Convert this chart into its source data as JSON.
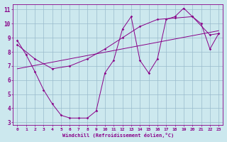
{
  "xlabel": "Windchill (Refroidissement éolien,°C)",
  "bg_color": "#cce8ee",
  "line_color": "#880088",
  "grid_color": "#99bbcc",
  "xlim": [
    -0.5,
    23.5
  ],
  "ylim": [
    2.8,
    11.4
  ],
  "xticks": [
    0,
    1,
    2,
    3,
    4,
    5,
    6,
    7,
    8,
    9,
    10,
    11,
    12,
    13,
    14,
    15,
    16,
    17,
    18,
    19,
    20,
    21,
    22,
    23
  ],
  "yticks": [
    3,
    4,
    5,
    6,
    7,
    8,
    9,
    10,
    11
  ],
  "line1_x": [
    0,
    1,
    2,
    3,
    4,
    5,
    6,
    7,
    8,
    9,
    10,
    11,
    12,
    13,
    14,
    15,
    16,
    17,
    18,
    19,
    20,
    21,
    22,
    23
  ],
  "line1_y": [
    8.8,
    7.8,
    6.6,
    5.3,
    4.3,
    3.5,
    3.3,
    3.3,
    3.3,
    3.8,
    6.5,
    7.4,
    9.6,
    10.5,
    7.4,
    6.5,
    7.5,
    10.3,
    10.5,
    11.1,
    10.5,
    10.0,
    8.2,
    9.3
  ],
  "line2_x": [
    0,
    2,
    4,
    6,
    8,
    10,
    12,
    14,
    16,
    18,
    20,
    22,
    23
  ],
  "line2_y": [
    8.5,
    7.5,
    6.8,
    7.0,
    7.5,
    8.2,
    9.0,
    9.8,
    10.3,
    10.4,
    10.5,
    9.2,
    9.3
  ],
  "line3_x": [
    0,
    23
  ],
  "line3_y": [
    6.8,
    9.5
  ]
}
